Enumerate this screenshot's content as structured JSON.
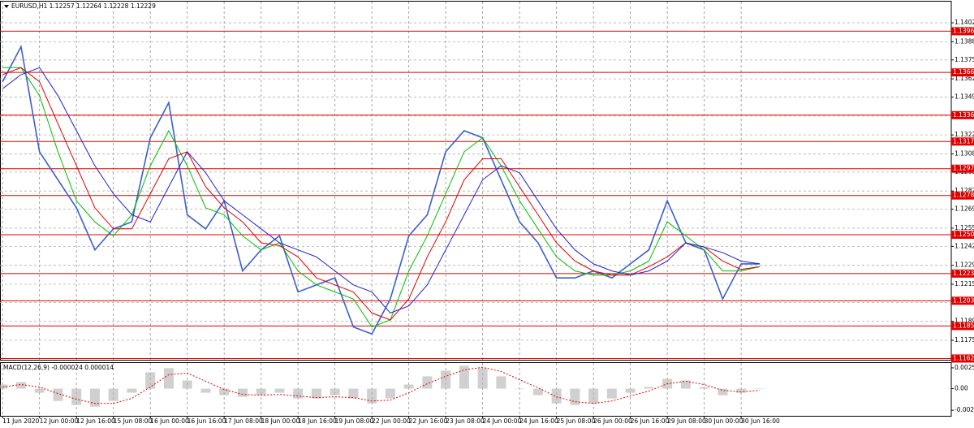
{
  "chart_data": [
    {
      "type": "line",
      "title": "EURUSD,H1  1.12257 1.12264 1.12228 1.12229",
      "x": [
        0,
        0.5,
        1,
        1.5,
        2,
        2.5,
        3,
        3.5,
        4,
        4.5,
        5,
        5.5,
        6,
        6.5,
        7,
        7.5,
        8,
        8.5,
        9,
        9.5,
        10,
        10.5,
        11,
        11.5,
        12,
        12.5,
        13,
        13.5,
        14,
        14.5,
        15,
        15.5,
        16,
        16.5,
        17,
        17.5,
        18,
        18.5,
        19,
        19.5,
        20,
        20.5
      ],
      "series": [
        {
          "color": "#3a5fcd",
          "values": [
            1.136,
            1.1385,
            1.131,
            1.129,
            1.127,
            1.124,
            1.1255,
            1.126,
            1.132,
            1.1345,
            1.1265,
            1.1255,
            1.1275,
            1.1225,
            1.124,
            1.125,
            1.121,
            1.1215,
            1.122,
            1.1185,
            1.118,
            1.1205,
            1.125,
            1.1265,
            1.131,
            1.1325,
            1.132,
            1.129,
            1.126,
            1.1245,
            1.122,
            1.122,
            1.1225,
            1.122,
            1.123,
            1.124,
            1.1275,
            1.1245,
            1.124,
            1.1205,
            1.123,
            1.123
          ]
        },
        {
          "color": "#00c000",
          "values": [
            1.137,
            1.137,
            1.135,
            1.131,
            1.1275,
            1.126,
            1.125,
            1.1265,
            1.13,
            1.1325,
            1.13,
            1.127,
            1.1265,
            1.125,
            1.124,
            1.1245,
            1.1225,
            1.1215,
            1.121,
            1.1205,
            1.1185,
            1.119,
            1.1225,
            1.125,
            1.128,
            1.131,
            1.132,
            1.13,
            1.1275,
            1.1255,
            1.1235,
            1.1225,
            1.1222,
            1.1222,
            1.1225,
            1.1232,
            1.126,
            1.125,
            1.124,
            1.1225,
            1.1225,
            1.1228
          ]
        },
        {
          "color": "#e00000",
          "values": [
            1.1365,
            1.137,
            1.136,
            1.133,
            1.13,
            1.127,
            1.1255,
            1.1255,
            1.128,
            1.1305,
            1.131,
            1.1285,
            1.127,
            1.126,
            1.1245,
            1.1243,
            1.1235,
            1.122,
            1.1215,
            1.121,
            1.1195,
            1.119,
            1.1205,
            1.1235,
            1.126,
            1.129,
            1.1305,
            1.1305,
            1.1285,
            1.1265,
            1.1245,
            1.1232,
            1.1225,
            1.1222,
            1.1222,
            1.1228,
            1.1235,
            1.1245,
            1.1242,
            1.1232,
            1.1226,
            1.1228
          ]
        },
        {
          "color": "#2020d0",
          "values": [
            1.1355,
            1.1365,
            1.137,
            1.135,
            1.1325,
            1.13,
            1.128,
            1.1265,
            1.126,
            1.1285,
            1.131,
            1.1295,
            1.1275,
            1.1265,
            1.1255,
            1.1245,
            1.124,
            1.1235,
            1.1225,
            1.1215,
            1.121,
            1.1195,
            1.12,
            1.1215,
            1.124,
            1.1265,
            1.129,
            1.13,
            1.1295,
            1.1275,
            1.1255,
            1.124,
            1.123,
            1.1225,
            1.1222,
            1.1225,
            1.1232,
            1.1245,
            1.1242,
            1.1238,
            1.1232,
            1.123
          ]
        }
      ],
      "xlim": [
        -0.07,
        25.69
      ],
      "ylim": [
        1.11616,
        1.14171
      ],
      "yticks": [
        {
          "value": 1.1402,
          "label": "1.14020"
        },
        1.13885,
        {
          "value": 1.13755,
          "label": "1.13755"
        },
        {
          "value": 1.1362,
          "label": "1.13620"
        },
        {
          "value": 1.1349,
          "label": "1.13490"
        },
        1.13355,
        {
          "value": 1.1322,
          "label": "1.13220"
        },
        1.13085,
        1.12955,
        {
          "value": 1.1282,
          "label": "1.12820"
        },
        {
          "value": 1.1269,
          "label": "1.12690"
        },
        1.12555,
        1.12425,
        {
          "value": 1.1229,
          "label": "1.12290"
        },
        1.12155,
        1.12025,
        {
          "value": 1.1189,
          "label": "1.11890"
        },
        1.11755
      ],
      "levels": [
        {
          "value": 1.1396,
          "label": "1.13960"
        },
        1.13666,
        1.13361,
        1.13173,
        1.12979,
        1.12788,
        1.12508,
        1.12231,
        1.12037,
        1.11857,
        1.11625
      ],
      "level_color": "#e00000",
      "grid": true
    },
    {
      "type": "macd",
      "title": "MACD(12,26,9) -0.000024 0.000014",
      "x": [
        0,
        0.5,
        1,
        1.5,
        2,
        2.5,
        3,
        3.5,
        4,
        4.5,
        5,
        5.5,
        6,
        6.5,
        7,
        7.5,
        8,
        8.5,
        9,
        9.5,
        10,
        10.5,
        11,
        11.5,
        12,
        12.5,
        13,
        13.5,
        14,
        14.5,
        15,
        15.5,
        16,
        16.5,
        17,
        17.5,
        18,
        18.5,
        19,
        19.5,
        20,
        20.5
      ],
      "series": [
        {
          "color": "#b0b0b0",
          "values": [
            0.0005,
            0.0008,
            -0.0005,
            -0.0015,
            -0.002,
            -0.0022,
            -0.0015,
            -0.0005,
            0.002,
            0.0025,
            0.001,
            -0.0005,
            -0.0008,
            -0.001,
            -0.0008,
            -0.0005,
            -0.0012,
            -0.0012,
            -0.0008,
            -0.0012,
            -0.0018,
            -0.0012,
            0.0005,
            0.0015,
            0.0022,
            0.0028,
            0.0025,
            0.0015,
            0,
            -0.0008,
            -0.0018,
            -0.002,
            -0.0018,
            -0.0012,
            -0.0005,
            0.0002,
            0.0012,
            0.001,
            0.0002,
            -0.0008,
            -0.0005,
            0
          ]
        },
        {
          "color": "#e00000",
          "values": [
            0.0002,
            0.0005,
            0.0002,
            -0.0006,
            -0.0013,
            -0.0018,
            -0.0018,
            -0.0012,
            0.0002,
            0.0017,
            0.0019,
            0.0009,
            -0.0001,
            -0.0007,
            -0.0008,
            -0.0007,
            -0.0009,
            -0.0011,
            -0.001,
            -0.0011,
            -0.0015,
            -0.0014,
            -0.0005,
            0.0006,
            0.0015,
            0.0023,
            0.0026,
            0.0021,
            0.0011,
            0.0001,
            -0.001,
            -0.0016,
            -0.0018,
            -0.0015,
            -0.0009,
            -0.0003,
            0.0006,
            0.0009,
            0.0005,
            -0.0002,
            -0.0004,
            -0.0002
          ]
        }
      ],
      "xlim": [
        -0.07,
        25.69
      ],
      "ylim": [
        -0.00332,
        0.00313
      ],
      "yticks": [
        0.00254,
        {
          "value": 0,
          "label": "0.00"
        },
        -0.00264
      ],
      "xticks": [
        {
          "value": 0,
          "label": "11 Jun 2020"
        },
        {
          "value": 1,
          "label": "12 Jun 00:00"
        },
        {
          "value": 2,
          "label": "12 Jun 16:00"
        },
        {
          "value": 3,
          "label": "15 Jun 08:00"
        },
        {
          "value": 4,
          "label": "16 Jun 00:00"
        },
        {
          "value": 5,
          "label": "16 Jun 16:00"
        },
        {
          "value": 6,
          "label": "17 Jun 08:00"
        },
        {
          "value": 7,
          "label": "18 Jun 00:00"
        },
        {
          "value": 8,
          "label": "18 Jun 16:00"
        },
        {
          "value": 9,
          "label": "19 Jun 08:00"
        },
        {
          "value": 10,
          "label": "22 Jun 00:00"
        },
        {
          "value": 11,
          "label": "22 Jun 16:00"
        },
        {
          "value": 12,
          "label": "23 Jun 08:00"
        },
        {
          "value": 13,
          "label": "24 Jun 00:00"
        },
        {
          "value": 14,
          "label": "24 Jun 16:00"
        },
        {
          "value": 15,
          "label": "25 Jun 08:00"
        },
        {
          "value": 16,
          "label": "26 Jun 00:00"
        },
        {
          "value": 17,
          "label": "26 Jun 16:00"
        },
        {
          "value": 18,
          "label": "29 Jun 08:00"
        },
        {
          "value": 19,
          "label": "30 Jun 00:00"
        },
        {
          "value": 20,
          "label": "30 Jun 16:00"
        }
      ]
    }
  ]
}
